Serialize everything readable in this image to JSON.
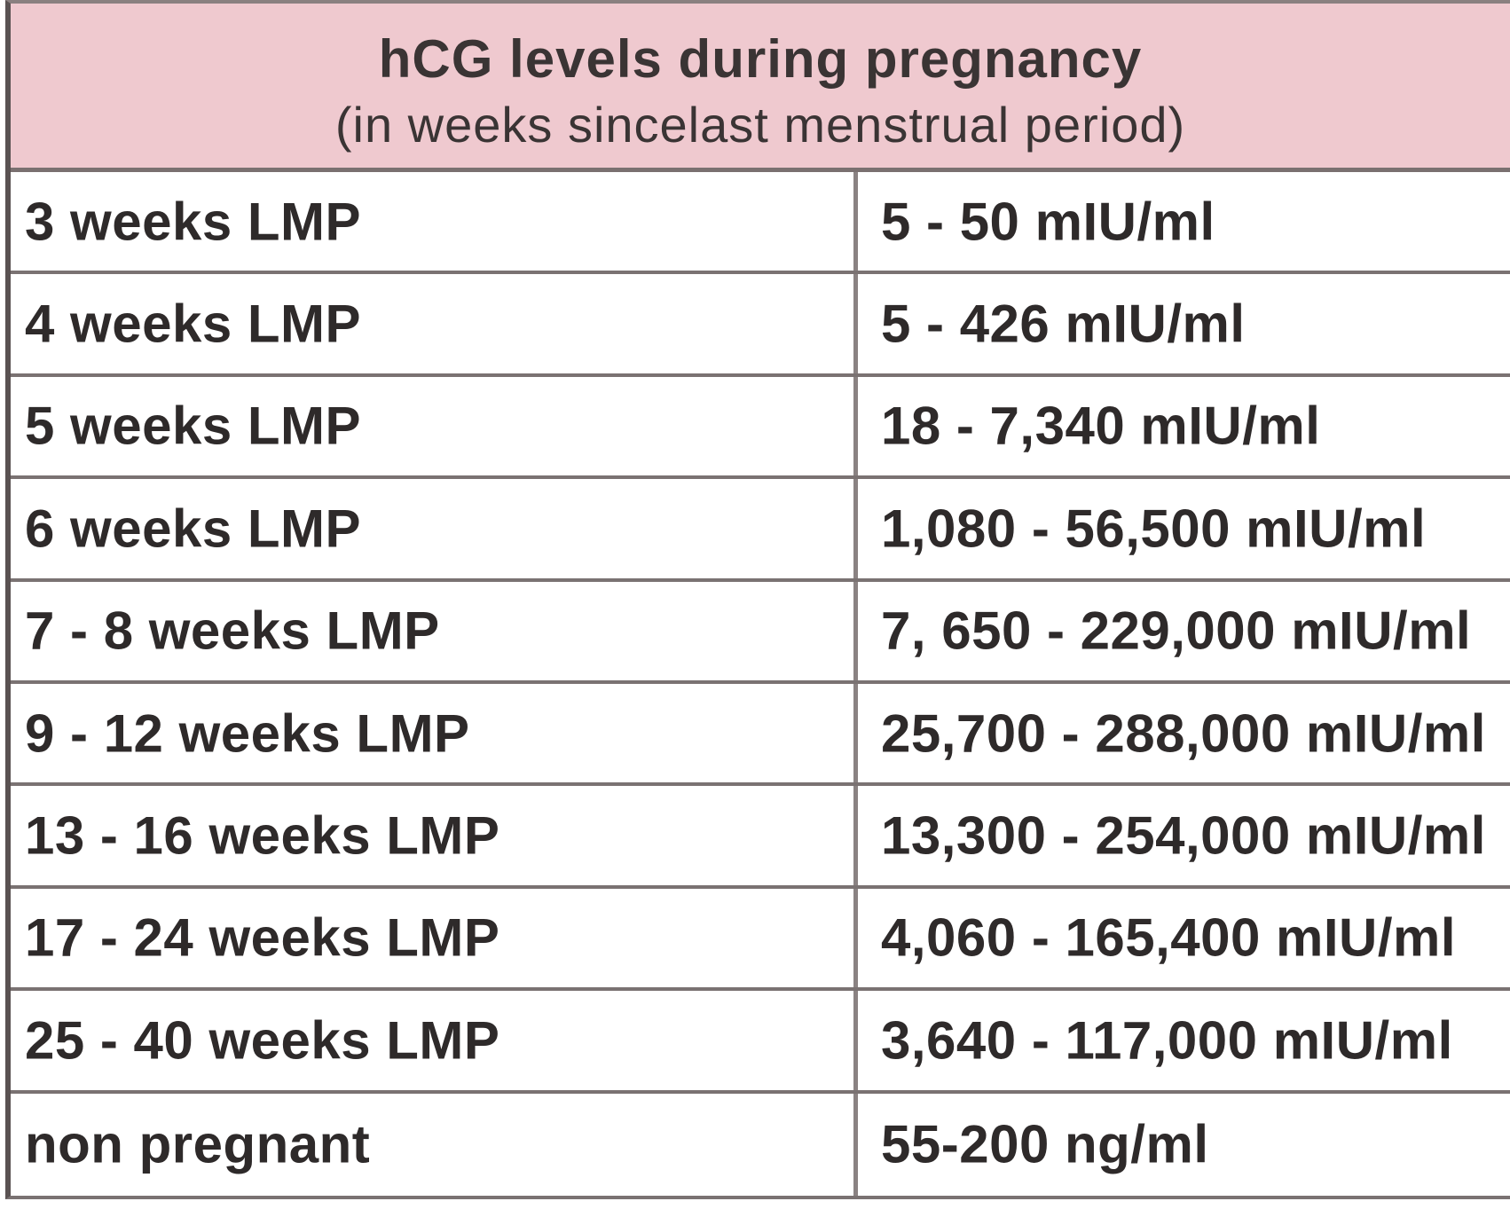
{
  "header": {
    "title": "hCG levels during pregnancy",
    "subtitle": "(in weeks sincelast menstrual period)"
  },
  "colors": {
    "header_background": "#efc9cf",
    "grid_lines": "#7a7272",
    "text": "#2e2a2a"
  },
  "rows": [
    {
      "period": "3 weeks LMP",
      "level": "5 - 50 mIU/ml"
    },
    {
      "period": "4 weeks LMP",
      "level": "5 - 426 mIU/ml"
    },
    {
      "period": "5 weeks LMP",
      "level": "18 - 7,340 mIU/ml"
    },
    {
      "period": "6 weeks LMP",
      "level": "1,080 - 56,500 mIU/ml"
    },
    {
      "period": "7 - 8 weeks LMP",
      "level": "7, 650 - 229,000 mIU/ml"
    },
    {
      "period": "9 - 12 weeks LMP",
      "level": "25,700 - 288,000 mIU/ml"
    },
    {
      "period": "13 - 16 weeks LMP",
      "level": "13,300 - 254,000 mIU/ml"
    },
    {
      "period": "17 - 24 weeks LMP",
      "level": "4,060 - 165,400 mIU/ml"
    },
    {
      "period": "25 - 40 weeks LMP",
      "level": "3,640 - 117,000 mIU/ml"
    },
    {
      "period": "non pregnant",
      "level": "55-200 ng/ml"
    }
  ]
}
